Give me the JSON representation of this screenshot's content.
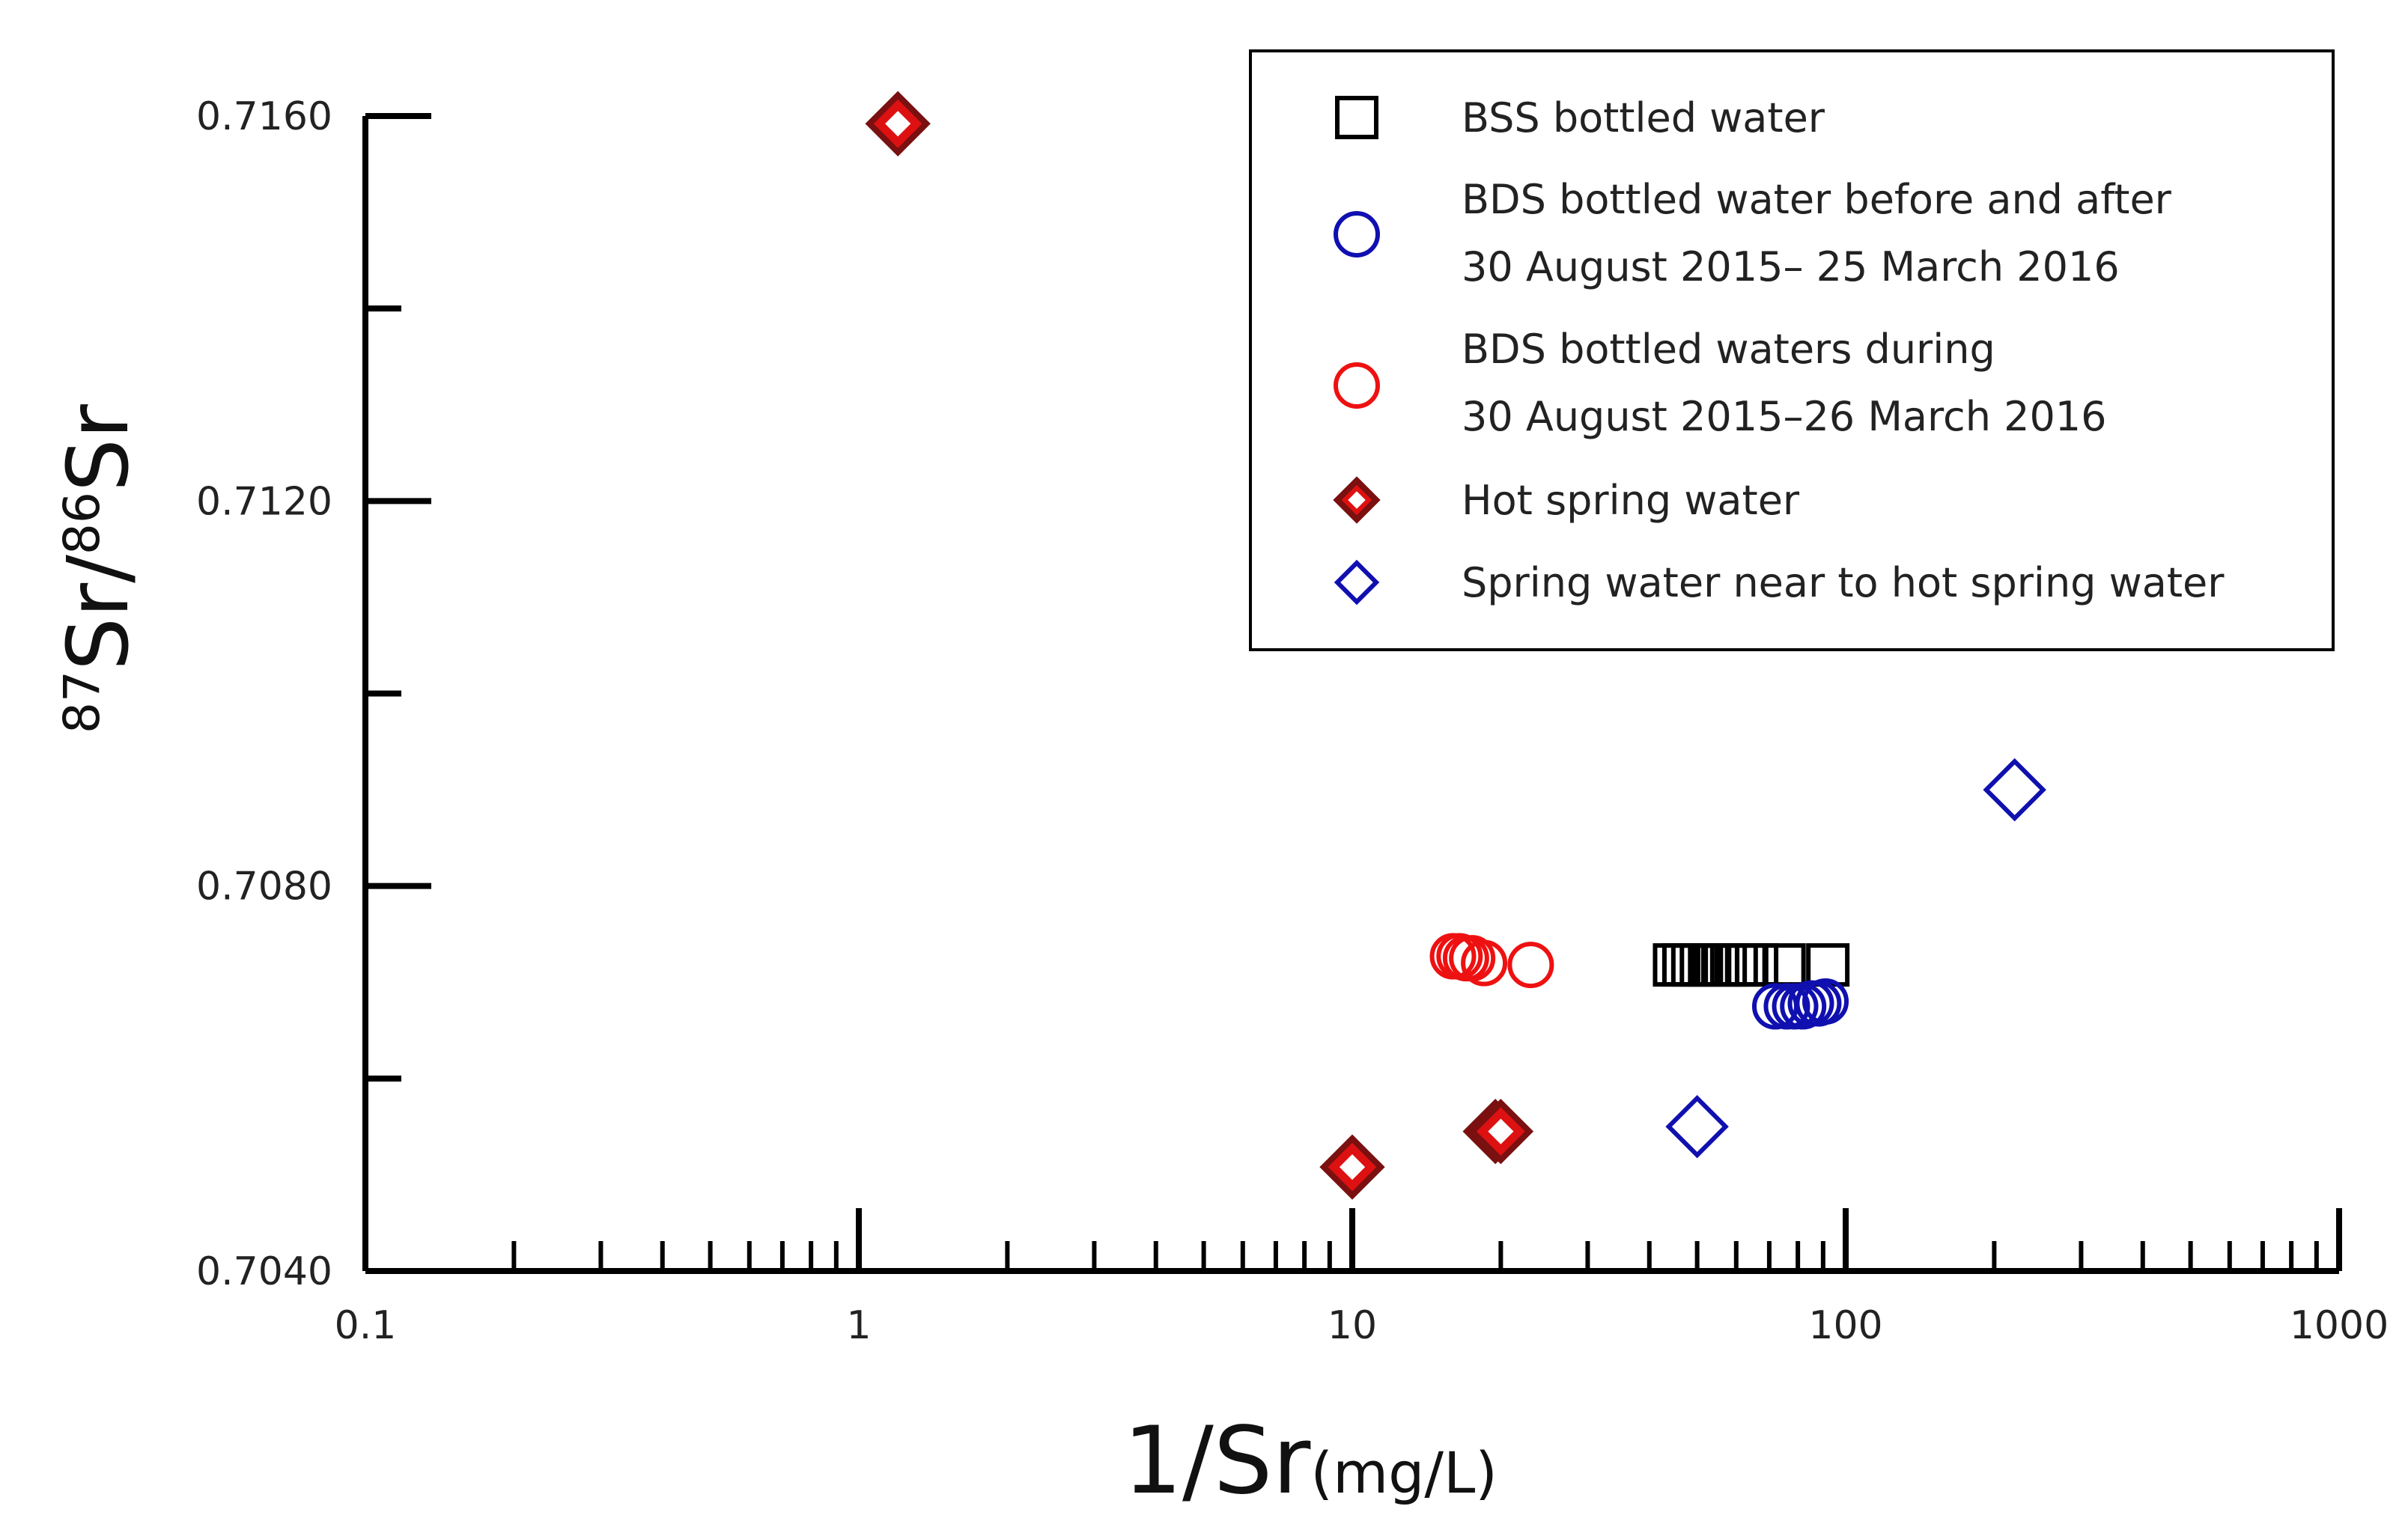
{
  "chart_data": {
    "type": "scatter",
    "x_scale": "log",
    "xlim": [
      0.1,
      1000
    ],
    "ylim": [
      0.704,
      0.716
    ],
    "x_ticks": [
      {
        "value": 0.1,
        "label": "0.1"
      },
      {
        "value": 1,
        "label": "1"
      },
      {
        "value": 10,
        "label": "10"
      },
      {
        "value": 100,
        "label": "100"
      },
      {
        "value": 1000,
        "label": "1000"
      }
    ],
    "y_ticks": [
      {
        "value": 0.704,
        "label": "0.7040"
      },
      {
        "value": 0.706,
        "label": ""
      },
      {
        "value": 0.708,
        "label": "0.7080"
      },
      {
        "value": 0.71,
        "label": ""
      },
      {
        "value": 0.712,
        "label": "0.7120"
      },
      {
        "value": 0.714,
        "label": ""
      },
      {
        "value": 0.716,
        "label": "0.7160"
      }
    ],
    "xlabel": {
      "main": "1/Sr",
      "unit": "(mg/L)"
    },
    "ylabel": {
      "sup1": "87",
      "text1": "Sr/",
      "sup2": "86",
      "text2": "Sr"
    },
    "legend_position": "top-right",
    "series": [
      {
        "name": "BSS bottled water",
        "marker": "square",
        "stroke": "#000000",
        "fill": "none",
        "points": [
          [
            45,
            0.70718
          ],
          [
            47,
            0.70718
          ],
          [
            49,
            0.70718
          ],
          [
            51,
            0.70718
          ],
          [
            53,
            0.70718
          ],
          [
            55,
            0.70718
          ],
          [
            57,
            0.70718
          ],
          [
            60,
            0.70718
          ],
          [
            63,
            0.70718
          ],
          [
            66,
            0.70718
          ],
          [
            75,
            0.70718
          ],
          [
            92,
            0.70718
          ]
        ]
      },
      {
        "name": "BDS bottled water before and after 30 August 2015– 25 March 2016",
        "marker": "circle",
        "stroke": "#1010b0",
        "fill": "none",
        "points": [
          [
            72,
            0.70675
          ],
          [
            76,
            0.70675
          ],
          [
            79,
            0.70675
          ],
          [
            82,
            0.70675
          ],
          [
            85,
            0.70678
          ],
          [
            88,
            0.70678
          ],
          [
            91,
            0.7068
          ]
        ]
      },
      {
        "name": "BDS bottled waters during 30 August 2015–26 March 2016",
        "marker": "circle",
        "stroke": "#ee1111",
        "fill": "none",
        "points": [
          [
            16,
            0.70727
          ],
          [
            16.5,
            0.70727
          ],
          [
            17,
            0.70725
          ],
          [
            17.5,
            0.70725
          ],
          [
            18.5,
            0.7072
          ],
          [
            23,
            0.70718
          ]
        ]
      },
      {
        "name": "Hot spring water",
        "marker": "diamond",
        "stroke": "#7a1010",
        "fill": "#dd1111",
        "points": [
          [
            1.2,
            0.71592
          ],
          [
            10,
            0.70508
          ],
          [
            19.5,
            0.70545
          ],
          [
            20,
            0.70545
          ]
        ]
      },
      {
        "name": "Spring water near to hot spring water",
        "marker": "diamond",
        "stroke": "#1010b0",
        "fill": "none",
        "points": [
          [
            50,
            0.7055
          ],
          [
            220,
            0.709
          ]
        ]
      }
    ],
    "legend": [
      {
        "lines": [
          "BSS bottled water"
        ]
      },
      {
        "lines": [
          "BDS bottled water before and after",
          "30 August 2015– 25 March 2016"
        ]
      },
      {
        "lines": [
          "BDS bottled waters during",
          "30 August 2015–26 March 2016"
        ]
      },
      {
        "lines": [
          "Hot spring water"
        ]
      },
      {
        "lines": [
          "Spring water near to hot spring water"
        ]
      }
    ]
  }
}
